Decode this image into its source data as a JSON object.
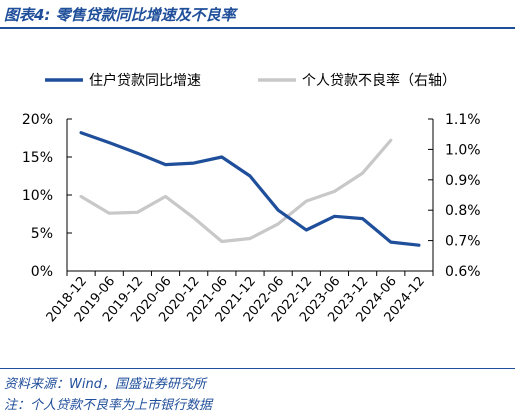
{
  "figure": {
    "title": "图表4:  零售贷款同比增速及不良率",
    "source": "资料来源：Wind，国盛证券研究所",
    "note": "注：个人贷款不良率为上市银行数据"
  },
  "chart_data": {
    "type": "line",
    "categories": [
      "2018-12",
      "2019-06",
      "2019-12",
      "2020-06",
      "2020-12",
      "2021-06",
      "2021-12",
      "2022-06",
      "2022-12",
      "2023-06",
      "2023-12",
      "2024-06",
      "2024-12"
    ],
    "left_axis": {
      "ticks": [
        "0%",
        "5%",
        "10%",
        "15%",
        "20%"
      ],
      "ylim": [
        0,
        20
      ],
      "unit": "%"
    },
    "right_axis": {
      "ticks": [
        "0.6%",
        "0.7%",
        "0.8%",
        "0.9%",
        "1.0%",
        "1.1%"
      ],
      "ylim": [
        0.6,
        1.1
      ],
      "unit": "%"
    },
    "series": [
      {
        "name": "住户贷款同比增速",
        "axis": "left",
        "color": "#1f4e9a",
        "values": [
          18.2,
          16.9,
          15.5,
          14.0,
          14.2,
          15.0,
          12.5,
          8.0,
          5.4,
          7.2,
          6.9,
          3.8,
          3.4
        ]
      },
      {
        "name": "个人贷款不良率（右轴）",
        "axis": "right",
        "color": "#c8c8c8",
        "values": [
          0.845,
          0.79,
          0.793,
          0.845,
          0.775,
          0.697,
          0.707,
          0.755,
          0.83,
          0.862,
          0.922,
          1.03,
          null
        ]
      }
    ],
    "legend_position": "top",
    "grid": false
  }
}
